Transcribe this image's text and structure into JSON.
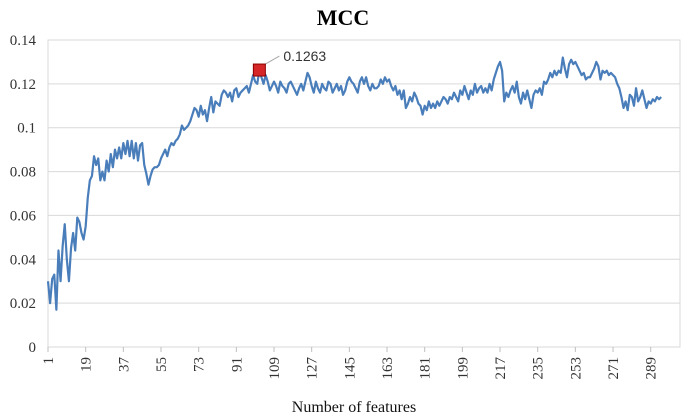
{
  "chart_data": {
    "type": "line",
    "title": "MCC",
    "xlabel": "Number of features",
    "ylabel": "",
    "xlim": [
      1,
      303
    ],
    "ylim": [
      0,
      0.14
    ],
    "yticks": [
      0,
      0.02,
      0.04,
      0.06,
      0.08,
      0.1,
      0.12,
      0.14
    ],
    "ytick_labels": [
      "0",
      "0.02",
      "0.04",
      "0.06",
      "0.08",
      "0.1",
      "0.12",
      "0.14"
    ],
    "xticks": [
      1,
      19,
      37,
      55,
      73,
      91,
      109,
      127,
      145,
      163,
      181,
      199,
      217,
      235,
      253,
      271,
      289
    ],
    "xtick_labels": [
      "1",
      "19",
      "37",
      "55",
      "73",
      "91",
      "109",
      "127",
      "145",
      "163",
      "181",
      "199",
      "217",
      "235",
      "253",
      "271",
      "289"
    ],
    "grid": true,
    "series": [
      {
        "color": "#4a7ebb",
        "points": [
          [
            1,
            0.03
          ],
          [
            2,
            0.02
          ],
          [
            3,
            0.031
          ],
          [
            4,
            0.033
          ],
          [
            5,
            0.017
          ],
          [
            6,
            0.044
          ],
          [
            7,
            0.03
          ],
          [
            8,
            0.046
          ],
          [
            9,
            0.056
          ],
          [
            10,
            0.04
          ],
          [
            11,
            0.03
          ],
          [
            12,
            0.045
          ],
          [
            13,
            0.052
          ],
          [
            14,
            0.044
          ],
          [
            15,
            0.059
          ],
          [
            16,
            0.057
          ],
          [
            17,
            0.052
          ],
          [
            18,
            0.049
          ],
          [
            19,
            0.055
          ],
          [
            20,
            0.068
          ],
          [
            21,
            0.076
          ],
          [
            22,
            0.078
          ],
          [
            23,
            0.087
          ],
          [
            24,
            0.083
          ],
          [
            25,
            0.086
          ],
          [
            26,
            0.076
          ],
          [
            27,
            0.08
          ],
          [
            28,
            0.076
          ],
          [
            29,
            0.085
          ],
          [
            30,
            0.08
          ],
          [
            31,
            0.088
          ],
          [
            32,
            0.082
          ],
          [
            33,
            0.09
          ],
          [
            34,
            0.086
          ],
          [
            35,
            0.091
          ],
          [
            36,
            0.086
          ],
          [
            37,
            0.093
          ],
          [
            38,
            0.088
          ],
          [
            39,
            0.094
          ],
          [
            40,
            0.087
          ],
          [
            41,
            0.094
          ],
          [
            42,
            0.086
          ],
          [
            43,
            0.093
          ],
          [
            44,
            0.085
          ],
          [
            45,
            0.092
          ],
          [
            46,
            0.093
          ],
          [
            47,
            0.083
          ],
          [
            48,
            0.079
          ],
          [
            49,
            0.074
          ],
          [
            50,
            0.078
          ],
          [
            51,
            0.081
          ],
          [
            52,
            0.082
          ],
          [
            53,
            0.082
          ],
          [
            54,
            0.083
          ],
          [
            55,
            0.086
          ],
          [
            56,
            0.088
          ],
          [
            57,
            0.09
          ],
          [
            58,
            0.087
          ],
          [
            59,
            0.091
          ],
          [
            60,
            0.093
          ],
          [
            61,
            0.092
          ],
          [
            62,
            0.094
          ],
          [
            63,
            0.095
          ],
          [
            64,
            0.097
          ],
          [
            65,
            0.101
          ],
          [
            66,
            0.099
          ],
          [
            67,
            0.1
          ],
          [
            68,
            0.101
          ],
          [
            69,
            0.103
          ],
          [
            70,
            0.106
          ],
          [
            71,
            0.109
          ],
          [
            72,
            0.108
          ],
          [
            73,
            0.105
          ],
          [
            74,
            0.11
          ],
          [
            75,
            0.106
          ],
          [
            76,
            0.108
          ],
          [
            77,
            0.103
          ],
          [
            78,
            0.109
          ],
          [
            79,
            0.114
          ],
          [
            80,
            0.107
          ],
          [
            81,
            0.112
          ],
          [
            82,
            0.111
          ],
          [
            83,
            0.11
          ],
          [
            84,
            0.115
          ],
          [
            85,
            0.117
          ],
          [
            86,
            0.116
          ],
          [
            87,
            0.114
          ],
          [
            88,
            0.116
          ],
          [
            89,
            0.112
          ],
          [
            90,
            0.117
          ],
          [
            91,
            0.118
          ],
          [
            92,
            0.114
          ],
          [
            93,
            0.116
          ],
          [
            94,
            0.117
          ],
          [
            95,
            0.118
          ],
          [
            96,
            0.119
          ],
          [
            97,
            0.116
          ],
          [
            98,
            0.12
          ],
          [
            99,
            0.124
          ],
          [
            100,
            0.121
          ],
          [
            101,
            0.12
          ],
          [
            102,
            0.1263
          ],
          [
            103,
            0.123
          ],
          [
            104,
            0.12
          ],
          [
            105,
            0.124
          ],
          [
            106,
            0.121
          ],
          [
            107,
            0.117
          ],
          [
            108,
            0.119
          ],
          [
            109,
            0.121
          ],
          [
            110,
            0.119
          ],
          [
            111,
            0.116
          ],
          [
            112,
            0.121
          ],
          [
            113,
            0.119
          ],
          [
            114,
            0.118
          ],
          [
            115,
            0.116
          ],
          [
            116,
            0.12
          ],
          [
            117,
            0.121
          ],
          [
            118,
            0.119
          ],
          [
            119,
            0.117
          ],
          [
            120,
            0.115
          ],
          [
            121,
            0.118
          ],
          [
            122,
            0.12
          ],
          [
            123,
            0.117
          ],
          [
            124,
            0.121
          ],
          [
            125,
            0.125
          ],
          [
            126,
            0.123
          ],
          [
            127,
            0.119
          ],
          [
            128,
            0.116
          ],
          [
            129,
            0.121
          ],
          [
            130,
            0.118
          ],
          [
            131,
            0.116
          ],
          [
            132,
            0.12
          ],
          [
            133,
            0.118
          ],
          [
            134,
            0.117
          ],
          [
            135,
            0.121
          ],
          [
            136,
            0.12
          ],
          [
            137,
            0.116
          ],
          [
            138,
            0.118
          ],
          [
            139,
            0.12
          ],
          [
            140,
            0.117
          ],
          [
            141,
            0.119
          ],
          [
            142,
            0.115
          ],
          [
            143,
            0.117
          ],
          [
            144,
            0.121
          ],
          [
            145,
            0.123
          ],
          [
            146,
            0.121
          ],
          [
            147,
            0.12
          ],
          [
            148,
            0.118
          ],
          [
            149,
            0.116
          ],
          [
            150,
            0.121
          ],
          [
            151,
            0.123
          ],
          [
            152,
            0.12
          ],
          [
            153,
            0.123
          ],
          [
            154,
            0.119
          ],
          [
            155,
            0.117
          ],
          [
            156,
            0.12
          ],
          [
            157,
            0.118
          ],
          [
            158,
            0.118
          ],
          [
            159,
            0.119
          ],
          [
            160,
            0.122
          ],
          [
            161,
            0.12
          ],
          [
            162,
            0.123
          ],
          [
            163,
            0.121
          ],
          [
            164,
            0.122
          ],
          [
            165,
            0.119
          ],
          [
            166,
            0.117
          ],
          [
            167,
            0.119
          ],
          [
            168,
            0.115
          ],
          [
            169,
            0.117
          ],
          [
            170,
            0.113
          ],
          [
            171,
            0.117
          ],
          [
            172,
            0.109
          ],
          [
            173,
            0.111
          ],
          [
            174,
            0.114
          ],
          [
            175,
            0.112
          ],
          [
            176,
            0.116
          ],
          [
            177,
            0.114
          ],
          [
            178,
            0.111
          ],
          [
            179,
            0.11
          ],
          [
            180,
            0.106
          ],
          [
            181,
            0.11
          ],
          [
            182,
            0.108
          ],
          [
            183,
            0.112
          ],
          [
            184,
            0.109
          ],
          [
            185,
            0.111
          ],
          [
            186,
            0.109
          ],
          [
            187,
            0.112
          ],
          [
            188,
            0.11
          ],
          [
            189,
            0.112
          ],
          [
            190,
            0.114
          ],
          [
            191,
            0.113
          ],
          [
            192,
            0.111
          ],
          [
            193,
            0.114
          ],
          [
            194,
            0.113
          ],
          [
            195,
            0.116
          ],
          [
            196,
            0.114
          ],
          [
            197,
            0.112
          ],
          [
            198,
            0.117
          ],
          [
            199,
            0.115
          ],
          [
            200,
            0.119
          ],
          [
            201,
            0.116
          ],
          [
            202,
            0.113
          ],
          [
            203,
            0.117
          ],
          [
            204,
            0.115
          ],
          [
            205,
            0.12
          ],
          [
            206,
            0.116
          ],
          [
            207,
            0.118
          ],
          [
            208,
            0.119
          ],
          [
            209,
            0.116
          ],
          [
            210,
            0.118
          ],
          [
            211,
            0.116
          ],
          [
            212,
            0.12
          ],
          [
            213,
            0.117
          ],
          [
            214,
            0.122
          ],
          [
            215,
            0.125
          ],
          [
            216,
            0.128
          ],
          [
            217,
            0.13
          ],
          [
            218,
            0.126
          ],
          [
            219,
            0.112
          ],
          [
            220,
            0.116
          ],
          [
            221,
            0.114
          ],
          [
            222,
            0.117
          ],
          [
            223,
            0.119
          ],
          [
            224,
            0.116
          ],
          [
            225,
            0.121
          ],
          [
            226,
            0.114
          ],
          [
            227,
            0.111
          ],
          [
            228,
            0.116
          ],
          [
            229,
            0.113
          ],
          [
            230,
            0.117
          ],
          [
            231,
            0.113
          ],
          [
            232,
            0.109
          ],
          [
            233,
            0.115
          ],
          [
            234,
            0.117
          ],
          [
            235,
            0.116
          ],
          [
            236,
            0.118
          ],
          [
            237,
            0.115
          ],
          [
            238,
            0.121
          ],
          [
            239,
            0.12
          ],
          [
            240,
            0.122
          ],
          [
            241,
            0.125
          ],
          [
            242,
            0.123
          ],
          [
            243,
            0.126
          ],
          [
            244,
            0.124
          ],
          [
            245,
            0.126
          ],
          [
            246,
            0.125
          ],
          [
            247,
            0.132
          ],
          [
            248,
            0.127
          ],
          [
            249,
            0.123
          ],
          [
            250,
            0.129
          ],
          [
            251,
            0.131
          ],
          [
            252,
            0.129
          ],
          [
            253,
            0.13
          ],
          [
            254,
            0.128
          ],
          [
            255,
            0.126
          ],
          [
            256,
            0.124
          ],
          [
            257,
            0.125
          ],
          [
            258,
            0.122
          ],
          [
            259,
            0.123
          ],
          [
            260,
            0.123
          ],
          [
            261,
            0.125
          ],
          [
            262,
            0.127
          ],
          [
            263,
            0.13
          ],
          [
            264,
            0.128
          ],
          [
            265,
            0.122
          ],
          [
            266,
            0.126
          ],
          [
            267,
            0.125
          ],
          [
            268,
            0.126
          ],
          [
            269,
            0.124
          ],
          [
            270,
            0.125
          ],
          [
            271,
            0.124
          ],
          [
            272,
            0.123
          ],
          [
            273,
            0.12
          ],
          [
            274,
            0.118
          ],
          [
            275,
            0.114
          ],
          [
            276,
            0.109
          ],
          [
            277,
            0.112
          ],
          [
            278,
            0.108
          ],
          [
            279,
            0.115
          ],
          [
            280,
            0.114
          ],
          [
            281,
            0.11
          ],
          [
            282,
            0.118
          ],
          [
            283,
            0.112
          ],
          [
            284,
            0.114
          ],
          [
            285,
            0.117
          ],
          [
            286,
            0.113
          ],
          [
            287,
            0.109
          ],
          [
            288,
            0.112
          ],
          [
            289,
            0.111
          ],
          [
            290,
            0.113
          ],
          [
            291,
            0.112
          ],
          [
            292,
            0.114
          ],
          [
            293,
            0.113
          ],
          [
            294,
            0.114
          ]
        ]
      }
    ],
    "annotation": {
      "x": 102,
      "y": 0.1263,
      "label": "0.1263",
      "marker_color": "#d62728"
    }
  }
}
